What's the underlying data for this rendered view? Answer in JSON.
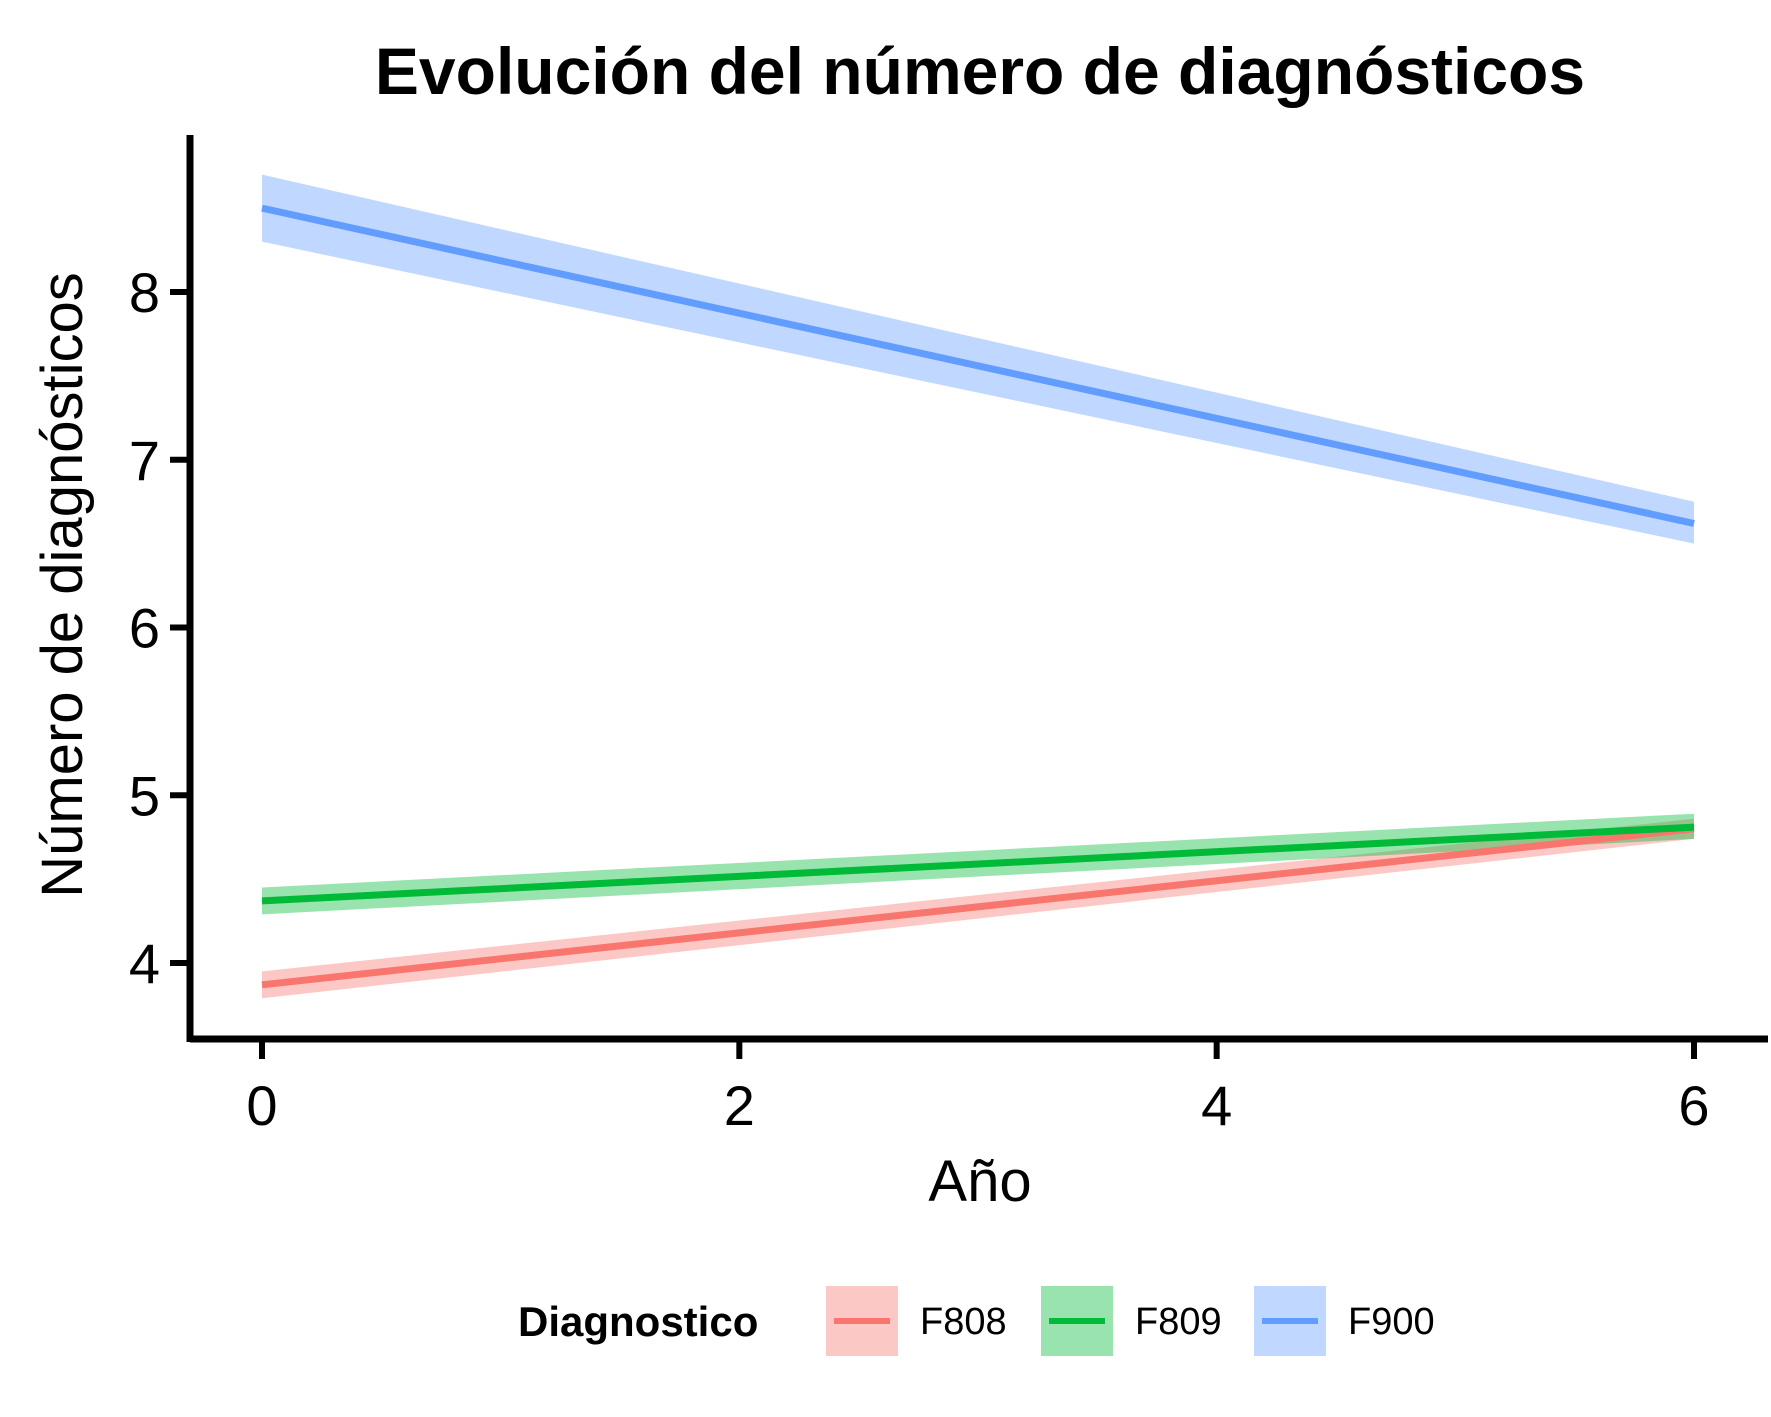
{
  "chart_data": {
    "type": "line",
    "title": "Evolución del número de diagnósticos",
    "xlabel": "Año",
    "ylabel": "Número de diagnósticos",
    "xlim": [
      -0.3,
      6.3
    ],
    "ylim": [
      3.55,
      8.95
    ],
    "x_ticks": [
      0,
      2,
      4,
      6
    ],
    "x_tick_labels": [
      "0",
      "2",
      "4",
      "6"
    ],
    "y_ticks": [
      4,
      5,
      6,
      7,
      8
    ],
    "y_tick_labels": [
      "4",
      "5",
      "6",
      "7",
      "8"
    ],
    "grid": false,
    "legend": {
      "title": "Diagnostico",
      "placement": "bottom"
    },
    "series": [
      {
        "name": "F808",
        "color": "#F8766D",
        "x": [
          0,
          6
        ],
        "y": [
          3.87,
          4.8
        ],
        "ci_lower": [
          3.79,
          4.74
        ],
        "ci_upper": [
          3.95,
          4.86
        ]
      },
      {
        "name": "F809",
        "color": "#00BA38",
        "x": [
          0,
          6
        ],
        "y": [
          4.37,
          4.81
        ],
        "ci_lower": [
          4.29,
          4.74
        ],
        "ci_upper": [
          4.45,
          4.89
        ]
      },
      {
        "name": "F900",
        "color": "#619CFF",
        "x": [
          0,
          6
        ],
        "y": [
          8.5,
          6.62
        ],
        "ci_lower": [
          8.3,
          6.5
        ],
        "ci_upper": [
          8.7,
          6.75
        ]
      }
    ]
  }
}
